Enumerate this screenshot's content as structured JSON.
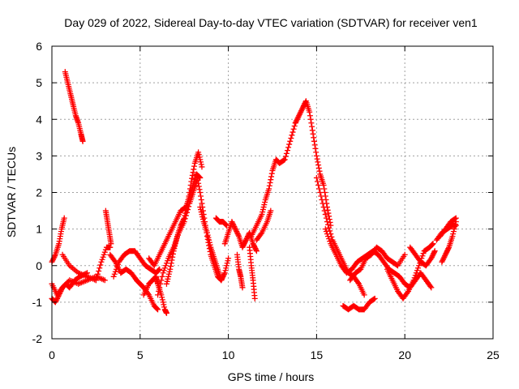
{
  "chart_data": {
    "type": "scatter",
    "title": "Day 029 of 2022, Sidereal Day-to-day VTEC variation (SDTVAR) for receiver ven1",
    "xlabel": "GPS time / hours",
    "ylabel": "SDTVAR / TECUs",
    "xlim": [
      0,
      25
    ],
    "ylim": [
      -2,
      6
    ],
    "xticks": [
      0,
      5,
      10,
      15,
      20,
      25
    ],
    "yticks": [
      -2,
      -1,
      0,
      1,
      2,
      3,
      4,
      5,
      6
    ],
    "grid": true,
    "marker": "+",
    "color": "#ff0000",
    "series": [
      {
        "name": "segment-01",
        "x": [
          0.0,
          0.2,
          0.4,
          0.55,
          0.7
        ],
        "y": [
          0.1,
          0.3,
          0.6,
          1.0,
          1.3
        ]
      },
      {
        "name": "segment-02",
        "x": [
          0.0,
          0.3,
          0.6,
          1.0,
          1.5,
          2.0,
          2.5,
          3.0
        ],
        "y": [
          -0.5,
          -0.8,
          -0.6,
          -0.4,
          -0.5,
          -0.4,
          -0.3,
          -0.4
        ]
      },
      {
        "name": "segment-03",
        "x": [
          0.0,
          0.2,
          0.4,
          0.6,
          0.8,
          1.0,
          1.3,
          1.6,
          2.0
        ],
        "y": [
          -0.9,
          -1.0,
          -0.8,
          -0.6,
          -0.5,
          -0.6,
          -0.4,
          -0.3,
          -0.2
        ]
      },
      {
        "name": "segment-04",
        "x": [
          0.75,
          0.9,
          1.05,
          1.2,
          1.35,
          1.5,
          1.65,
          1.75
        ],
        "y": [
          5.3,
          5.0,
          4.7,
          4.4,
          4.1,
          3.9,
          3.6,
          3.4
        ]
      },
      {
        "name": "segment-05",
        "x": [
          0.6,
          1.0,
          1.5,
          2.0,
          2.5
        ],
        "y": [
          0.3,
          0.0,
          -0.2,
          -0.3,
          -0.4
        ]
      },
      {
        "name": "segment-06",
        "x": [
          2.5,
          2.8,
          3.1,
          3.3
        ],
        "y": [
          -0.4,
          0.1,
          0.5,
          0.5
        ]
      },
      {
        "name": "segment-07",
        "x": [
          3.05,
          3.15,
          3.25,
          3.35
        ],
        "y": [
          1.5,
          1.2,
          0.9,
          0.6
        ]
      },
      {
        "name": "segment-08",
        "x": [
          3.3,
          3.6,
          3.9,
          4.2,
          4.5,
          4.8,
          5.0,
          5.2,
          5.5,
          5.8,
          6.0
        ],
        "y": [
          0.3,
          0.1,
          -0.2,
          -0.1,
          -0.2,
          -0.4,
          -0.5,
          -0.6,
          -0.8,
          -1.1,
          -1.2
        ]
      },
      {
        "name": "segment-09",
        "x": [
          3.5,
          3.8,
          4.1,
          4.4,
          4.7,
          5.0,
          5.3,
          5.6,
          5.9,
          6.1
        ],
        "y": [
          -0.3,
          0.1,
          0.3,
          0.4,
          0.4,
          0.2,
          0.0,
          -0.1,
          -0.2,
          -0.1
        ]
      },
      {
        "name": "segment-10",
        "x": [
          5.2,
          5.5,
          5.7,
          5.9,
          6.0,
          6.2,
          6.4,
          6.5
        ],
        "y": [
          -0.8,
          -0.5,
          -0.4,
          -0.3,
          -0.5,
          -0.8,
          -1.2,
          -1.3
        ]
      },
      {
        "name": "segment-11",
        "x": [
          6.5,
          6.7,
          6.9,
          7.1,
          7.3,
          7.5,
          7.7,
          7.9,
          8.1,
          8.3,
          8.5
        ],
        "y": [
          -0.5,
          -0.1,
          0.4,
          0.8,
          1.1,
          1.3,
          1.7,
          2.3,
          2.8,
          3.1,
          2.7
        ]
      },
      {
        "name": "segment-12",
        "x": [
          5.5,
          5.8,
          6.1,
          6.4,
          6.7,
          7.0,
          7.3,
          7.6,
          7.8,
          8.0,
          8.2,
          8.4
        ],
        "y": [
          0.2,
          0.0,
          0.3,
          0.6,
          0.9,
          1.2,
          1.5,
          1.6,
          1.9,
          2.2,
          2.5,
          2.4
        ]
      },
      {
        "name": "segment-13",
        "x": [
          6.0,
          6.3,
          6.6,
          6.9,
          7.2,
          7.5,
          7.8,
          8.0,
          8.2
        ],
        "y": [
          -0.8,
          -0.2,
          0.2,
          0.5,
          0.9,
          1.2,
          1.7,
          2.0,
          2.3
        ]
      },
      {
        "name": "segment-14",
        "x": [
          8.2,
          8.4,
          8.6,
          8.8,
          9.0,
          9.2,
          9.4,
          9.6,
          9.8,
          10.0
        ],
        "y": [
          2.5,
          2.0,
          1.4,
          0.8,
          0.3,
          0.0,
          -0.3,
          -0.4,
          -0.2,
          0.2
        ]
      },
      {
        "name": "segment-15",
        "x": [
          8.4,
          8.6,
          8.8,
          9.0,
          9.2,
          9.4,
          9.6
        ],
        "y": [
          1.6,
          1.2,
          0.9,
          0.5,
          0.2,
          -0.1,
          -0.4
        ]
      },
      {
        "name": "segment-16",
        "x": [
          9.3,
          9.5,
          9.7,
          9.9
        ],
        "y": [
          1.3,
          1.2,
          1.2,
          1.1
        ]
      },
      {
        "name": "segment-17",
        "x": [
          9.8,
          10.0,
          10.2,
          10.4,
          10.6,
          10.8,
          11.0,
          11.2,
          11.4,
          11.6
        ],
        "y": [
          0.6,
          0.9,
          1.2,
          1.0,
          0.8,
          0.5,
          0.7,
          0.9,
          0.6,
          0.4
        ]
      },
      {
        "name": "segment-18",
        "x": [
          10.5,
          10.6,
          10.7,
          10.8
        ],
        "y": [
          0.3,
          -0.1,
          -0.3,
          -0.6
        ]
      },
      {
        "name": "segment-19",
        "x": [
          11.2,
          11.3,
          11.4,
          11.5
        ],
        "y": [
          0.5,
          0.0,
          -0.4,
          -0.9
        ]
      },
      {
        "name": "segment-20",
        "x": [
          11.3,
          11.6,
          11.9,
          12.1,
          12.3,
          12.5,
          12.7,
          12.9,
          13.2,
          13.5,
          13.8
        ],
        "y": [
          0.8,
          1.1,
          1.4,
          1.8,
          2.1,
          2.6,
          2.9,
          2.8,
          2.9,
          3.4,
          3.9
        ]
      },
      {
        "name": "segment-21",
        "x": [
          11.6,
          11.9,
          12.2,
          12.4
        ],
        "y": [
          0.7,
          0.9,
          1.2,
          1.5
        ]
      },
      {
        "name": "segment-22",
        "x": [
          13.8,
          14.0,
          14.2,
          14.4,
          14.6,
          14.8,
          15.0,
          15.2,
          15.4,
          15.6,
          15.8
        ],
        "y": [
          3.9,
          4.1,
          4.3,
          4.5,
          4.2,
          3.6,
          3.0,
          2.5,
          2.2,
          1.6,
          1.1
        ]
      },
      {
        "name": "segment-23",
        "x": [
          15.0,
          15.3,
          15.6,
          15.9,
          16.2,
          16.5,
          16.8,
          17.1,
          17.4,
          17.7
        ],
        "y": [
          2.4,
          1.8,
          1.2,
          0.7,
          0.4,
          0.1,
          -0.2,
          -0.3,
          -0.5,
          -0.8
        ]
      },
      {
        "name": "segment-24",
        "x": [
          15.5,
          15.8,
          16.1,
          16.4,
          16.7,
          17.0,
          17.3,
          17.6,
          17.9,
          18.2,
          18.5,
          18.8,
          19.1,
          19.4,
          19.7,
          20.0,
          20.3,
          20.6,
          20.9,
          21.2,
          21.5
        ],
        "y": [
          1.0,
          0.6,
          0.3,
          0.0,
          -0.2,
          -0.1,
          0.1,
          0.2,
          0.3,
          0.4,
          0.3,
          0.1,
          -0.1,
          -0.2,
          -0.3,
          -0.5,
          -0.6,
          -0.4,
          -0.2,
          -0.4,
          -0.6
        ]
      },
      {
        "name": "segment-25",
        "x": [
          16.5,
          16.8,
          17.1,
          17.4,
          17.7,
          18.0,
          18.3
        ],
        "y": [
          -1.1,
          -1.2,
          -1.1,
          -1.2,
          -1.2,
          -1.0,
          -0.9
        ]
      },
      {
        "name": "segment-26",
        "x": [
          16.9,
          17.2,
          17.5,
          17.8,
          18.1,
          18.4,
          18.7,
          19.0,
          19.3,
          19.6,
          20.0
        ],
        "y": [
          -0.4,
          -0.2,
          -0.1,
          0.2,
          0.3,
          0.5,
          0.4,
          0.2,
          0.1,
          0.0,
          0.3
        ]
      },
      {
        "name": "segment-27",
        "x": [
          19.0,
          19.3,
          19.6,
          19.9,
          20.2,
          20.5,
          20.8,
          21.1,
          21.4,
          21.6
        ],
        "y": [
          -0.1,
          -0.4,
          -0.7,
          -0.9,
          -0.7,
          -0.4,
          0.0,
          0.4,
          0.5,
          0.6
        ]
      },
      {
        "name": "segment-28",
        "x": [
          20.3,
          20.6,
          20.9,
          21.2,
          21.5,
          21.7
        ],
        "y": [
          0.5,
          0.3,
          0.1,
          0.0,
          0.2,
          0.4
        ]
      },
      {
        "name": "segment-29",
        "x": [
          22.0,
          22.3,
          22.6,
          22.9
        ],
        "y": [
          0.8,
          1.0,
          1.2,
          1.3
        ]
      },
      {
        "name": "segment-30",
        "x": [
          22.1,
          22.3,
          22.5,
          22.7,
          22.9
        ],
        "y": [
          0.1,
          0.3,
          0.5,
          0.8,
          1.2
        ]
      },
      {
        "name": "segment-31",
        "x": [
          21.8,
          22.1,
          22.4,
          22.7,
          22.9
        ],
        "y": [
          0.7,
          0.9,
          1.0,
          1.1,
          1.1
        ]
      }
    ]
  }
}
